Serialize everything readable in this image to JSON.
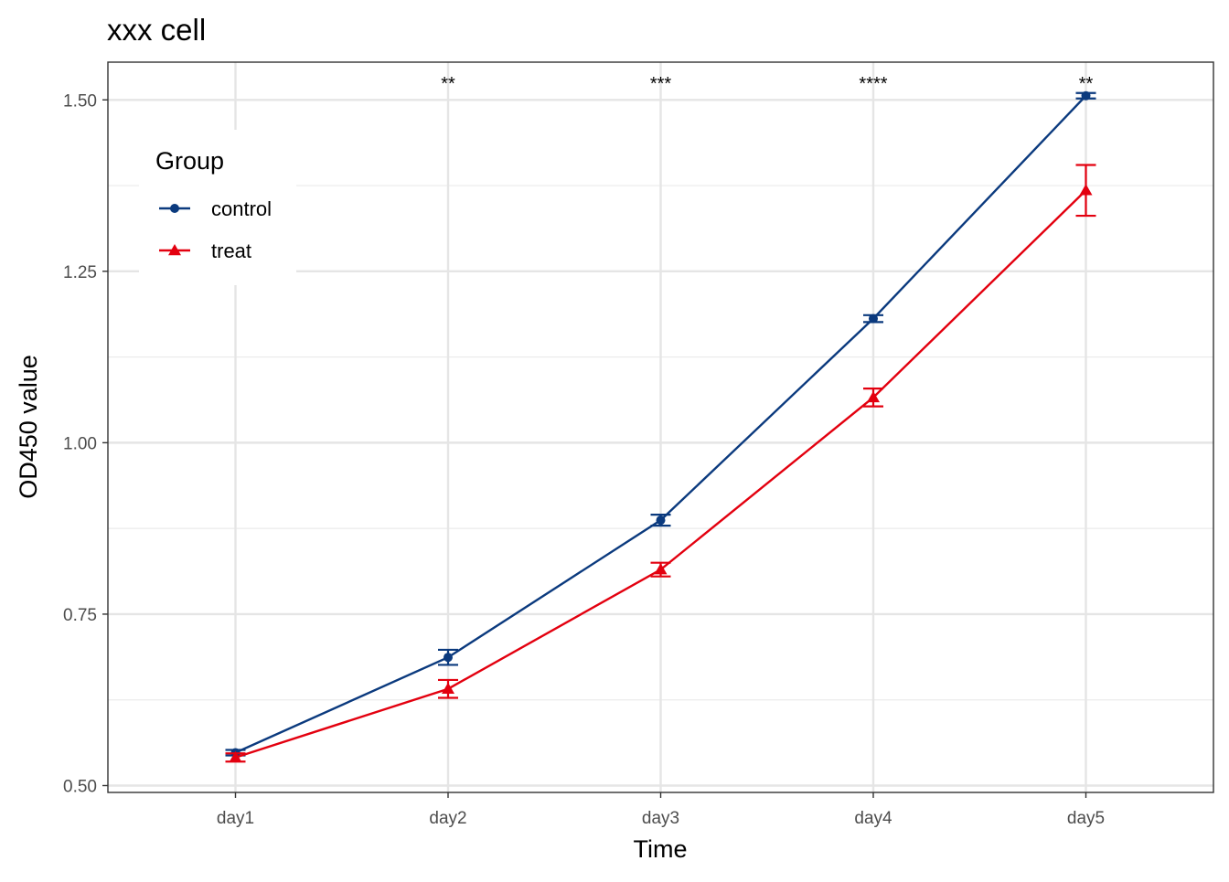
{
  "chart_data": {
    "type": "line",
    "title": "xxx cell",
    "xlabel": "Time",
    "ylabel": "OD450 value",
    "categories": [
      "day1",
      "day2",
      "day3",
      "day4",
      "day5"
    ],
    "ylim": [
      0.49,
      1.555
    ],
    "yticks": [
      0.5,
      0.75,
      1.0,
      1.25,
      1.5
    ],
    "ytick_labels": [
      "0.50",
      "0.75",
      "1.00",
      "1.25",
      "1.50"
    ],
    "grid": true,
    "legend": {
      "title": "Group",
      "position": "top-left inside"
    },
    "series": [
      {
        "name": "control",
        "color": "#0b3a7e",
        "marker": "circle",
        "values": [
          0.548,
          0.687,
          0.887,
          1.181,
          1.506
        ],
        "errors": [
          0.004,
          0.011,
          0.008,
          0.005,
          0.004
        ]
      },
      {
        "name": "treat",
        "color": "#e3000f",
        "marker": "triangle",
        "values": [
          0.541,
          0.641,
          0.815,
          1.066,
          1.368
        ],
        "errors": [
          0.006,
          0.013,
          0.01,
          0.013,
          0.037
        ]
      }
    ],
    "annotations": [
      "",
      "**",
      "***",
      "****",
      "**"
    ],
    "annotation_y": 1.527
  }
}
